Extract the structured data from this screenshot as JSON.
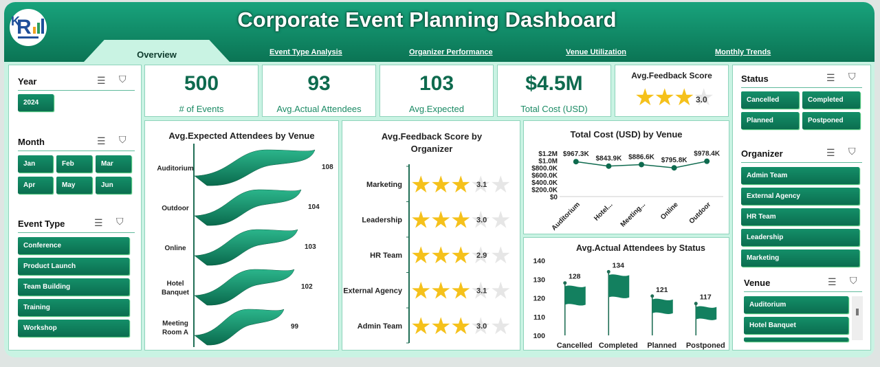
{
  "header": {
    "title": "Corporate Event Planning Dashboard"
  },
  "tabs": [
    {
      "label": "Overview"
    },
    {
      "label": "Event Type Analysis"
    },
    {
      "label": "Organizer Performance"
    },
    {
      "label": "Venue Utilization"
    },
    {
      "label": "Monthly Trends"
    }
  ],
  "filters": {
    "year": {
      "title": "Year",
      "items": [
        "2024"
      ]
    },
    "month": {
      "title": "Month",
      "items": [
        "Jan",
        "Feb",
        "Mar",
        "Apr",
        "May",
        "Jun"
      ]
    },
    "event_type": {
      "title": "Event Type",
      "items": [
        "Conference",
        "Product Launch",
        "Team Building",
        "Training",
        "Workshop"
      ]
    },
    "status": {
      "title": "Status",
      "items": [
        "Cancelled",
        "Completed",
        "Planned",
        "Postponed"
      ]
    },
    "organizer": {
      "title": "Organizer",
      "items": [
        "Admin Team",
        "External Agency",
        "HR Team",
        "Leadership",
        "Marketing"
      ]
    },
    "venue": {
      "title": "Venue",
      "items": [
        "Auditorium",
        "Hotel Banquet"
      ]
    }
  },
  "kpis": [
    {
      "value": "500",
      "label": "# of Events"
    },
    {
      "value": "93",
      "label": "Avg.Actual Attendees"
    },
    {
      "value": "103",
      "label": "Avg.Expected"
    },
    {
      "value": "$4.5M",
      "label": "Total Cost (USD)"
    }
  ],
  "feedback_kpi": {
    "title": "Avg.Feedback Score",
    "value": "3.0",
    "score": 3.0
  },
  "chart_data": [
    {
      "type": "bar",
      "title": "Avg.Expected Attendees by Venue",
      "categories": [
        "Auditorium",
        "Outdoor",
        "Online",
        "Hotel Banquet",
        "Meeting Room A"
      ],
      "values": [
        108,
        104,
        103,
        102,
        99
      ]
    },
    {
      "type": "bar",
      "title": "Avg.Feedback Score by Organizer",
      "categories": [
        "Marketing",
        "Leadership",
        "HR Team",
        "External Agency",
        "Admin Team"
      ],
      "values": [
        3.1,
        3.0,
        2.9,
        3.1,
        3.0
      ],
      "labels": [
        "3.1",
        "3.0",
        "2.9",
        "3.1",
        "3.0"
      ],
      "max": 5
    },
    {
      "type": "line",
      "title": "Total Cost (USD) by Venue",
      "categories": [
        "Auditorium",
        "Hotel...",
        "Meeting...",
        "Online",
        "Outdoor"
      ],
      "values": [
        967300,
        843900,
        886600,
        795800,
        978400
      ],
      "labels": [
        "$967.3K",
        "$843.9K",
        "$886.6K",
        "$795.8K",
        "$978.4K"
      ],
      "ylim": [
        0,
        1200000
      ],
      "yticks": [
        "$1.2M",
        "$1.0M",
        "$800.0K",
        "$600.0K",
        "$400.0K",
        "$200.0K",
        "$0"
      ]
    },
    {
      "type": "bar",
      "title": "Avg.Actual Attendees by Status",
      "categories": [
        "Cancelled",
        "Completed",
        "Planned",
        "Postponed"
      ],
      "values": [
        128,
        134,
        121,
        117
      ],
      "ylim": [
        100,
        140
      ],
      "yticks": [
        "140",
        "130",
        "120",
        "110",
        "100"
      ]
    }
  ],
  "colors": {
    "accent": "#0e6a4e",
    "header": "#13916d",
    "background": "#c9f3e3",
    "star": "#f5c11b"
  }
}
